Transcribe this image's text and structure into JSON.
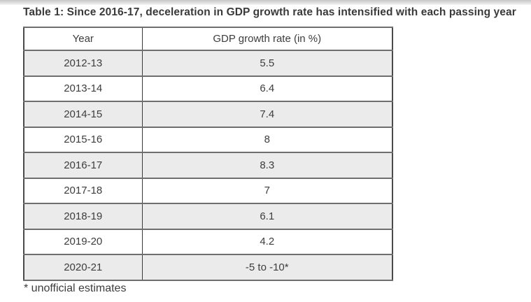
{
  "chart_data": {
    "type": "table",
    "title": "Table 1: Since 2016-17, deceleration in GDP growth rate has intensified with each passing year",
    "columns": [
      "Year",
      "GDP growth rate (in %)"
    ],
    "rows": [
      [
        "2012-13",
        "5.5"
      ],
      [
        "2013-14",
        "6.4"
      ],
      [
        "2014-15",
        "7.4"
      ],
      [
        "2015-16",
        "8"
      ],
      [
        "2016-17",
        "8.3"
      ],
      [
        "2017-18",
        "7"
      ],
      [
        "2018-19",
        "6.1"
      ],
      [
        "2019-20",
        "4.2"
      ],
      [
        "2020-21",
        "-5 to -10*"
      ]
    ],
    "footnote": "* unofficial estimates",
    "layout": {
      "striped": true,
      "first_data_row_shaded": true
    }
  },
  "colors": {
    "alt_row_background": "#ebebeb",
    "row_border": "#6e6e6e",
    "outer_border": "#4a4a4a",
    "text": "#3d3d3d"
  }
}
